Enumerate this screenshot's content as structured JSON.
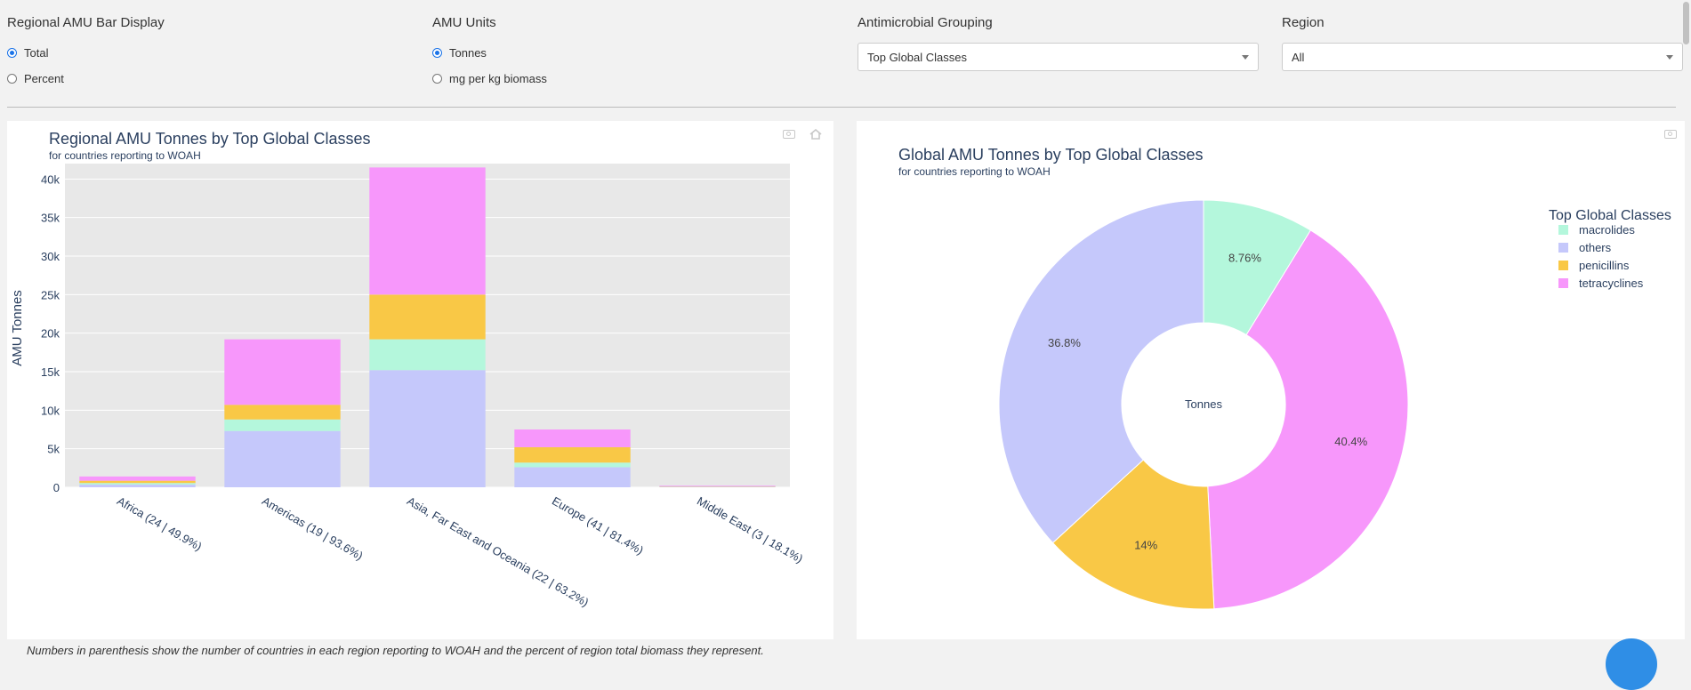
{
  "controls": {
    "bar_display": {
      "label": "Regional AMU Bar Display",
      "options": [
        "Total",
        "Percent"
      ],
      "selected": 0
    },
    "units": {
      "label": "AMU Units",
      "options": [
        "Tonnes",
        "mg per kg biomass"
      ],
      "selected": 0
    },
    "grouping": {
      "label": "Antimicrobial Grouping",
      "value": "Top Global Classes"
    },
    "region": {
      "label": "Region",
      "value": "All"
    }
  },
  "footnote": "Numbers in parenthesis show the number of countries in each region reporting to WOAH and the percent of region total biomass they represent.",
  "colors": {
    "macrolides": "#b4f7dc",
    "others": "#c5c8fb",
    "penicillins": "#f9c846",
    "tetracyclines": "#f797fb"
  },
  "chart_data": [
    {
      "type": "bar",
      "stacked": true,
      "title": "Regional AMU Tonnes by Top Global Classes",
      "subtitle": "for countries reporting to WOAH",
      "xlabel": "",
      "ylabel": "AMU Tonnes",
      "ylim": [
        0,
        42000
      ],
      "yticks": [
        0,
        5000,
        10000,
        15000,
        20000,
        25000,
        30000,
        35000,
        40000
      ],
      "ytick_labels": [
        "0",
        "5k",
        "10k",
        "15k",
        "20k",
        "25k",
        "30k",
        "35k",
        "40k"
      ],
      "categories": [
        "Africa (24 | 49.9%)",
        "Americas (19 | 93.6%)",
        "Asia, Far East and Oceania (22 | 63.2%)",
        "Europe (41 | 81.4%)",
        "Middle East (3 | 18.1%)"
      ],
      "series": [
        {
          "name": "others",
          "values": [
            350,
            7300,
            15200,
            2600,
            60
          ]
        },
        {
          "name": "macrolides",
          "values": [
            200,
            1500,
            4000,
            600,
            20
          ]
        },
        {
          "name": "penicillins",
          "values": [
            300,
            1900,
            5800,
            2000,
            40
          ]
        },
        {
          "name": "tetracyclines",
          "values": [
            550,
            8500,
            16500,
            2300,
            80
          ]
        }
      ],
      "grid": true
    },
    {
      "type": "pie",
      "hole": true,
      "title": "Global AMU Tonnes by Top Global Classes",
      "subtitle": "for countries reporting to WOAH",
      "center_label": "Tonnes",
      "legend_title": "Top Global Classes",
      "legend_position": "top-right",
      "legend": [
        "macrolides",
        "others",
        "penicillins",
        "tetracyclines"
      ],
      "slices": [
        {
          "name": "macrolides",
          "value": 8.76,
          "label": "8.76%"
        },
        {
          "name": "tetracyclines",
          "value": 40.4,
          "label": "40.4%"
        },
        {
          "name": "penicillins",
          "value": 14,
          "label": "14%"
        },
        {
          "name": "others",
          "value": 36.8,
          "label": "36.8%"
        }
      ]
    }
  ]
}
